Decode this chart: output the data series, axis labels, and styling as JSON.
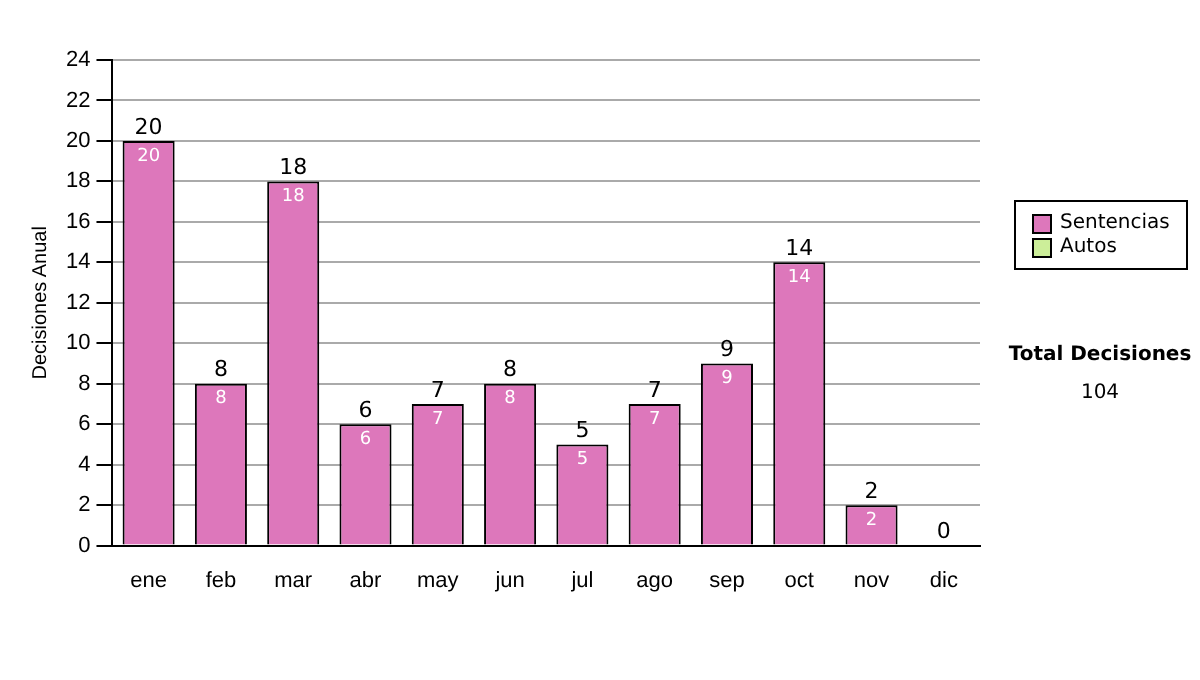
{
  "chart_data": {
    "type": "bar",
    "stacked": true,
    "ylabel": "Decisiones Anual",
    "categories": [
      "ene",
      "feb",
      "mar",
      "abr",
      "may",
      "jun",
      "jul",
      "ago",
      "sep",
      "oct",
      "nov",
      "dic"
    ],
    "series": [
      {
        "name": "Sentencias",
        "color": "#dd77bb",
        "values": [
          20,
          8,
          18,
          6,
          7,
          8,
          5,
          7,
          9,
          14,
          2,
          0
        ],
        "value_labels": [
          "20",
          "8",
          "18",
          "6",
          "7",
          "8",
          "5",
          "7",
          "9",
          "14",
          "2",
          null
        ]
      },
      {
        "name": "Autos",
        "color": "#ccee99",
        "values": [
          0,
          0,
          0,
          0,
          0,
          0,
          0,
          0,
          0,
          0,
          0,
          0
        ]
      }
    ],
    "totals": [
      "20",
      "8",
      "18",
      "6",
      "7",
      "8",
      "5",
      "7",
      "9",
      "14",
      "2",
      "0"
    ],
    "ylim": [
      0,
      24
    ],
    "yticks": [
      0,
      2,
      4,
      6,
      8,
      10,
      12,
      14,
      16,
      18,
      20,
      22,
      24
    ],
    "grid": "y",
    "legend": "right",
    "annotations": [
      "Total Decisiones",
      "104"
    ]
  }
}
